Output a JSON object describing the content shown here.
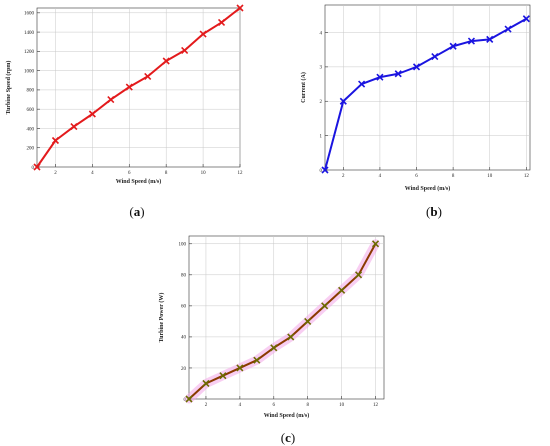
{
  "chart_data": [
    {
      "id": "a",
      "panel_label": "a",
      "type": "line",
      "xlabel": "Wind Speed (m/s)",
      "ylabel": "Turbine Speed (rpm)",
      "xlim": [
        1,
        12
      ],
      "ylim": [
        0,
        1650
      ],
      "xticks": [
        2,
        4,
        6,
        8,
        10,
        12
      ],
      "yticks": [
        0,
        200,
        400,
        600,
        800,
        1000,
        1200,
        1400,
        1600
      ],
      "grid": true,
      "color": "#e31a1c",
      "marker": "x",
      "series": [
        {
          "x": [
            1,
            2,
            3,
            4,
            5,
            6,
            7,
            8,
            9,
            10,
            11,
            12
          ],
          "y": [
            0,
            275,
            420,
            550,
            700,
            830,
            940,
            1100,
            1210,
            1380,
            1500,
            1650
          ]
        }
      ]
    },
    {
      "id": "b",
      "panel_label": "b",
      "type": "line",
      "xlabel": "Wind Speed (m/s)",
      "ylabel": "Current (A)",
      "xlim": [
        1,
        12.2
      ],
      "ylim": [
        0,
        4.8
      ],
      "xticks": [
        2,
        4,
        6,
        8,
        10,
        12
      ],
      "yticks": [
        0,
        1,
        2,
        3,
        4
      ],
      "grid": true,
      "color": "#1a14e0",
      "marker": "x",
      "series": [
        {
          "x": [
            1,
            2,
            3,
            4,
            5,
            6,
            7,
            8,
            9,
            10,
            11,
            12
          ],
          "y": [
            0,
            2.0,
            2.5,
            2.7,
            2.8,
            3.0,
            3.3,
            3.6,
            3.75,
            3.8,
            4.1,
            4.4
          ]
        }
      ]
    },
    {
      "id": "c",
      "panel_label": "c",
      "type": "line",
      "xlabel": "Wind Speed (m/s)",
      "ylabel": "Turbine Power (W)",
      "xlim": [
        1,
        12.5
      ],
      "ylim": [
        0,
        105
      ],
      "xticks": [
        2,
        4,
        6,
        8,
        10,
        12
      ],
      "yticks": [
        0,
        20,
        40,
        60,
        80,
        100
      ],
      "grid": true,
      "color": "#8a3a00",
      "marker_color": "#6b6b00",
      "highlight_color": "#f3a6e8",
      "marker": "x",
      "series": [
        {
          "x": [
            1,
            2,
            3,
            4,
            5,
            6,
            7,
            8,
            9,
            10,
            11,
            12
          ],
          "y": [
            0,
            10,
            15,
            20,
            25,
            33,
            40,
            50,
            60,
            70,
            80,
            100
          ]
        }
      ]
    }
  ]
}
